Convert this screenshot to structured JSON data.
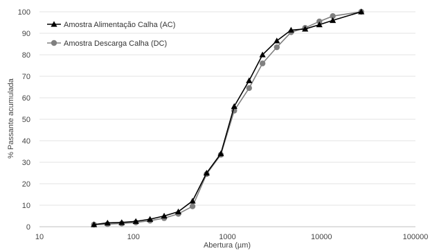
{
  "chart_data": {
    "type": "line",
    "title": "",
    "xlabel": "Abertura (µm)",
    "ylabel": "% Passante acumulada",
    "xscale": "log",
    "xlim": [
      10,
      100000
    ],
    "ylim": [
      0,
      100
    ],
    "xticks": [
      "10",
      "100",
      "1000",
      "10000",
      "100000"
    ],
    "yticks": [
      "0",
      "10",
      "20",
      "30",
      "40",
      "50",
      "60",
      "70",
      "80",
      "90",
      "100"
    ],
    "grid": "horizontal",
    "legend_position": "top-left",
    "series": [
      {
        "name": "Amostra Alimentação Calha (AC)",
        "marker": "triangle",
        "color": "#000000",
        "x": [
          38,
          53,
          75,
          106,
          150,
          212,
          300,
          425,
          600,
          850,
          1180,
          1700,
          2360,
          3350,
          4750,
          6700,
          9500,
          13200,
          26500
        ],
        "y": [
          1.0,
          1.8,
          2.0,
          2.5,
          3.5,
          5.0,
          7.0,
          12.0,
          25.0,
          34.0,
          56.0,
          68.0,
          80.0,
          86.5,
          91.5,
          92.0,
          94.0,
          96.0,
          100.0
        ]
      },
      {
        "name": "Amostra Descarga Calha (DC)",
        "marker": "circle",
        "color": "#808080",
        "x": [
          38,
          53,
          75,
          106,
          150,
          212,
          300,
          425,
          600,
          850,
          1180,
          1700,
          2360,
          3350,
          4750,
          6700,
          9500,
          13200,
          26500
        ],
        "y": [
          1.0,
          1.2,
          1.5,
          2.0,
          2.8,
          4.0,
          6.0,
          9.5,
          24.5,
          33.5,
          54.0,
          64.5,
          76.0,
          83.5,
          90.5,
          92.5,
          95.5,
          98.0,
          100.0
        ]
      }
    ]
  }
}
